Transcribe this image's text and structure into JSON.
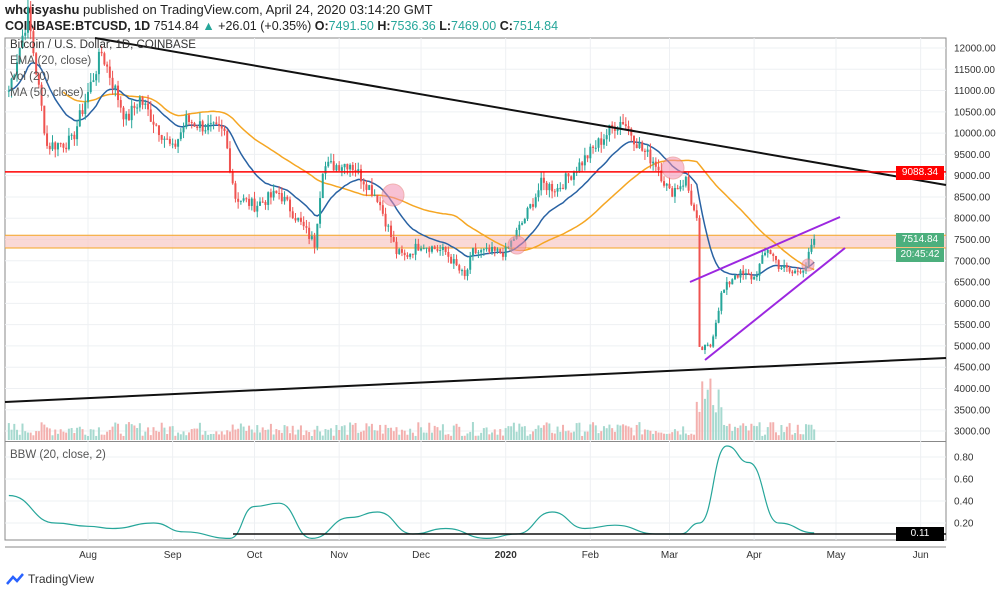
{
  "header": {
    "author": "whoisyashu",
    "published": "published on TradingView.com, April 24, 2020 03:14:20 GMT",
    "symbol": "COINBASE:BTCUSD, 1D",
    "last": "7514.84",
    "change": "+26.01 (+0.35%)",
    "o_label": "O:",
    "o": "7491.50",
    "h_label": "H:",
    "h": "7536.36",
    "l_label": "L:",
    "l": "7469.00",
    "c_label": "C:",
    "c": "7514.84"
  },
  "legend": [
    "Bitcoin / U.S. Dollar, 1D, COINBASE",
    "EMA (20, close)",
    "Vol (20)",
    "MA (50, close)"
  ],
  "bbw_legend": "BBW (20, close, 2)",
  "price_tags": {
    "resistance": "9088.34",
    "last": "7514.84",
    "countdown": "20:45:42",
    "bbw": "0.11"
  },
  "colors": {
    "up": "#26a69a",
    "down": "#ef5350",
    "ema": "#2962a3",
    "ma": "#f5a623",
    "resistance": "#ff0000",
    "channel": "#9c27e0",
    "bbw": "#26a69a"
  },
  "footer": {
    "logo": "TradingView"
  },
  "chart_data": [
    {
      "type": "candlestick",
      "title": "Bitcoin / U.S. Dollar, 1D, COINBASE",
      "ylim": [
        3000,
        12500
      ],
      "y_ticks": [
        3000,
        3500,
        4000,
        4500,
        5000,
        5500,
        6000,
        6500,
        7000,
        7500,
        8000,
        8500,
        9000,
        9500,
        10000,
        10500,
        11000,
        11500,
        12000
      ],
      "x_ticks": [
        "Aug",
        "Sep",
        "Oct",
        "Nov",
        "Dec",
        "2020",
        "Feb",
        "Mar",
        "Apr",
        "May",
        "Jun"
      ],
      "approx_closes": [
        [
          "2019-07-03",
          11000
        ],
        [
          "2019-07-10",
          12800
        ],
        [
          "2019-07-17",
          9700
        ],
        [
          "2019-07-26",
          9800
        ],
        [
          "2019-08-06",
          11900
        ],
        [
          "2019-08-15",
          10300
        ],
        [
          "2019-08-20",
          10800
        ],
        [
          "2019-09-01",
          9600
        ],
        [
          "2019-09-06",
          10300
        ],
        [
          "2019-09-20",
          10000
        ],
        [
          "2019-09-24",
          8500
        ],
        [
          "2019-10-01",
          8300
        ],
        [
          "2019-10-10",
          8600
        ],
        [
          "2019-10-23",
          7400
        ],
        [
          "2019-10-26",
          9200
        ],
        [
          "2019-11-05",
          9300
        ],
        [
          "2019-11-15",
          8500
        ],
        [
          "2019-11-22",
          7200
        ],
        [
          "2019-11-25",
          7100
        ],
        [
          "2019-12-01",
          7400
        ],
        [
          "2019-12-10",
          7200
        ],
        [
          "2019-12-17",
          6600
        ],
        [
          "2019-12-20",
          7200
        ],
        [
          "2020-01-01",
          7200
        ],
        [
          "2020-01-08",
          8000
        ],
        [
          "2020-01-14",
          8800
        ],
        [
          "2020-01-20",
          8700
        ],
        [
          "2020-01-30",
          9400
        ],
        [
          "2020-02-10",
          10200
        ],
        [
          "2020-02-13",
          10300
        ],
        [
          "2020-02-20",
          9600
        ],
        [
          "2020-02-25",
          9300
        ],
        [
          "2020-03-01",
          8600
        ],
        [
          "2020-03-07",
          8900
        ],
        [
          "2020-03-11",
          7900
        ],
        [
          "2020-03-12",
          4900
        ],
        [
          "2020-03-16",
          5000
        ],
        [
          "2020-03-20",
          6200
        ],
        [
          "2020-03-25",
          6700
        ],
        [
          "2020-04-01",
          6600
        ],
        [
          "2020-04-06",
          7300
        ],
        [
          "2020-04-10",
          6900
        ],
        [
          "2020-04-15",
          6700
        ],
        [
          "2020-04-20",
          6900
        ],
        [
          "2020-04-23",
          7514.84
        ]
      ],
      "horizontal_lines": [
        9088.34
      ],
      "support_zone": [
        7300,
        7600
      ]
    },
    {
      "type": "line",
      "title": "BBW (20, close, 2)",
      "ylim": [
        0,
        0.9
      ],
      "y_ticks": [
        0.2,
        0.4,
        0.6,
        0.8
      ],
      "approx_values": [
        [
          "2019-07-03",
          0.45
        ],
        [
          "2019-07-20",
          0.2
        ],
        [
          "2019-08-01",
          0.17
        ],
        [
          "2019-08-10",
          0.15
        ],
        [
          "2019-08-25",
          0.2
        ],
        [
          "2019-09-05",
          0.12
        ],
        [
          "2019-09-22",
          0.06
        ],
        [
          "2019-10-01",
          0.35
        ],
        [
          "2019-10-10",
          0.38
        ],
        [
          "2019-10-22",
          0.06
        ],
        [
          "2019-11-05",
          0.25
        ],
        [
          "2019-11-15",
          0.3
        ],
        [
          "2019-11-28",
          0.1
        ],
        [
          "2019-12-10",
          0.15
        ],
        [
          "2019-12-25",
          0.06
        ],
        [
          "2020-01-05",
          0.1
        ],
        [
          "2020-01-18",
          0.3
        ],
        [
          "2020-01-30",
          0.15
        ],
        [
          "2020-02-10",
          0.18
        ],
        [
          "2020-02-25",
          0.1
        ],
        [
          "2020-03-05",
          0.1
        ],
        [
          "2020-03-12",
          0.2
        ],
        [
          "2020-03-22",
          0.9
        ],
        [
          "2020-03-30",
          0.75
        ],
        [
          "2020-04-10",
          0.2
        ],
        [
          "2020-04-23",
          0.11
        ]
      ]
    }
  ]
}
